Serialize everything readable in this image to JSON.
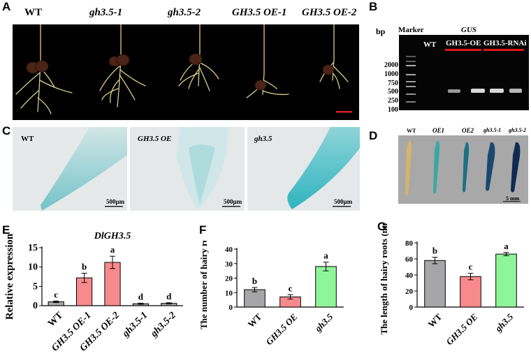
{
  "panel_letters": {
    "a": "A",
    "b": "B",
    "c": "C",
    "d": "D",
    "e": "E",
    "f": "F",
    "g": "G"
  },
  "panelA": {
    "genotypes": [
      "WT",
      "gh3.5-1",
      "gh3.5-2",
      "GH3.5 OE-1",
      "GH3.5 OE-2"
    ]
  },
  "panelB": {
    "bp_label": "bp",
    "marker_label": "Marker",
    "gene_label": "GUS",
    "lanes": [
      "WT",
      "GH3.5-OE",
      "GH3.5-RNAi"
    ],
    "ladder": [
      "2000",
      "1000",
      "750",
      "500",
      "250",
      "100"
    ]
  },
  "panelC": {
    "images": [
      {
        "label": "WT",
        "scale": "500μm"
      },
      {
        "label": "GH3.5 OE",
        "scale": "500μm"
      },
      {
        "label": "gh3.5",
        "scale": "500μm"
      }
    ]
  },
  "panelD": {
    "labels": [
      "WT",
      "OE1",
      "OE2",
      "gh3.5-1",
      "gh3.5-2"
    ],
    "scale": "5 mm"
  },
  "colors": {
    "gray": "#a6a6a8",
    "red": "#f98a8c",
    "green": "#8ff59a",
    "gel_bg": "#050505",
    "gus_blue": "#5fbdc4"
  },
  "chart_data": [
    {
      "type": "bar",
      "title": "DlGH3.5",
      "ylabel": "Relative expression",
      "categories": [
        "WT",
        "GH3.5 OE-1",
        "GH3.5 OE-2",
        "gh3.5-1",
        "gh3.5-2"
      ],
      "values": [
        1.0,
        7.2,
        11.2,
        0.5,
        0.6
      ],
      "errors": [
        0.2,
        1.2,
        1.6,
        0.15,
        0.15
      ],
      "sig_letters": [
        "c",
        "b",
        "a",
        "d",
        "d"
      ],
      "colors": [
        "gray",
        "red",
        "red",
        "gray",
        "gray"
      ],
      "ylim": [
        0,
        15
      ],
      "yticks": [
        "0",
        "5",
        "10",
        "15"
      ]
    },
    {
      "type": "bar",
      "title": "",
      "ylabel": "The number of hairy roots",
      "categories": [
        "WT",
        "GH3.5 OE",
        "gh3.5"
      ],
      "values": [
        12,
        7,
        28
      ],
      "errors": [
        1.5,
        1.5,
        3
      ],
      "sig_letters": [
        "b",
        "c",
        "a"
      ],
      "colors": [
        "gray",
        "red",
        "green"
      ],
      "ylim": [
        0,
        40
      ],
      "yticks": [
        "0",
        "10",
        "20",
        "30",
        "40"
      ]
    },
    {
      "type": "bar",
      "title": "",
      "ylabel": "The length of hairy roots (mm)",
      "categories": [
        "WT",
        "GH3.5 OE",
        "gh3.5"
      ],
      "values": [
        58,
        38,
        66
      ],
      "errors": [
        4,
        4,
        2
      ],
      "sig_letters": [
        "b",
        "c",
        "a"
      ],
      "colors": [
        "gray",
        "red",
        "green"
      ],
      "ylim": [
        0,
        80
      ],
      "yticks": [
        "0",
        "20",
        "40",
        "60",
        "80"
      ]
    }
  ]
}
